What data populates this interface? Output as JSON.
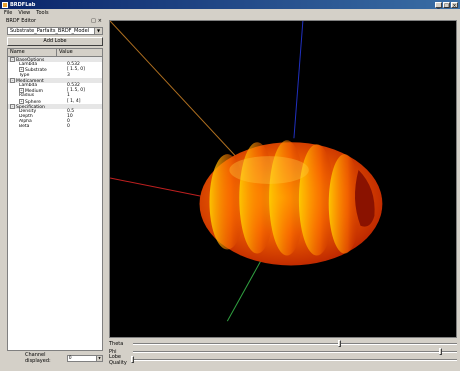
{
  "window": {
    "title": "BRDFLab"
  },
  "menu": [
    "File",
    "View",
    "Tools"
  ],
  "panel": {
    "title": "BRDF Editor",
    "buttons": [
      "×",
      "□"
    ],
    "model": "Substrate_Parfaits_BRDF_Model",
    "add_lobe": "Add Lobe",
    "columns": {
      "name": "Name",
      "value": "Value"
    },
    "rows": [
      {
        "name": "BaseOptions",
        "value": "",
        "level": 0,
        "group": true,
        "expander": "-"
      },
      {
        "name": "Lambda",
        "value": "0.532",
        "level": 1
      },
      {
        "name": "Substrate",
        "value": "[ 1.5, 0]",
        "level": 1,
        "expander": "+"
      },
      {
        "name": "Type",
        "value": "3",
        "level": 1
      },
      {
        "name": "Medicament",
        "value": "",
        "level": 0,
        "group": true,
        "expander": "-"
      },
      {
        "name": "Lambda",
        "value": "0.532",
        "level": 1
      },
      {
        "name": "Medium",
        "value": "[ 1.5, 0]",
        "level": 1,
        "expander": "+"
      },
      {
        "name": "Radius",
        "value": "1",
        "level": 1
      },
      {
        "name": "Sphere",
        "value": "[ 1, 4]",
        "level": 1,
        "expander": "+"
      },
      {
        "name": "Specification",
        "value": "",
        "level": 0,
        "group": true,
        "expander": "-"
      },
      {
        "name": "Density",
        "value": "0.5",
        "level": 1
      },
      {
        "name": "Depth",
        "value": "10",
        "level": 1
      },
      {
        "name": "Alpha",
        "value": "0",
        "level": 1
      },
      {
        "name": "Beta",
        "value": "0",
        "level": 1
      }
    ],
    "channel": {
      "label": "Channel displayed:",
      "value": "0"
    }
  },
  "sliders": [
    {
      "label": "Theta",
      "value": 0.64
    },
    {
      "label": "Phi",
      "value": 0.95
    },
    {
      "label": "Lobe Quality",
      "value": 0.0
    }
  ],
  "colors": {
    "lobe_dark": "#b01800",
    "lobe_mid": "#f04000",
    "lobe_light": "#ffd000"
  }
}
